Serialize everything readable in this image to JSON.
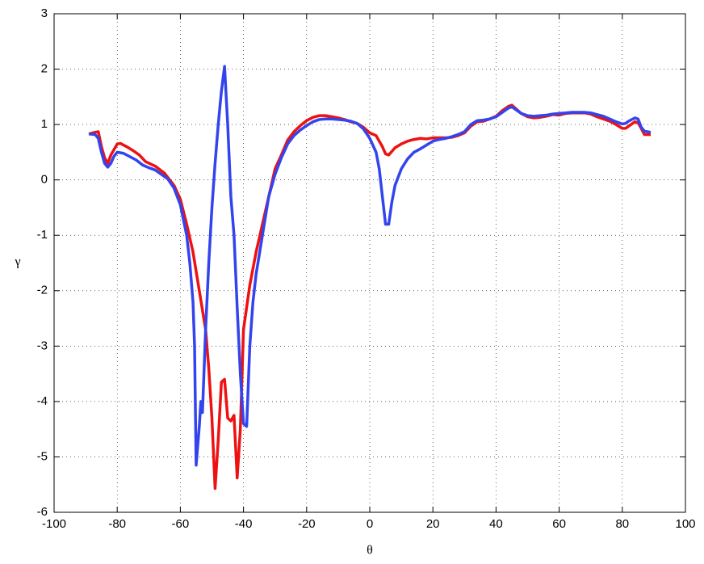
{
  "chart_data": {
    "type": "line",
    "x_label": "θ",
    "y_label": "γ",
    "xlim": [
      -100,
      100
    ],
    "xticks": [
      -100,
      -80,
      -60,
      -40,
      -20,
      0,
      20,
      40,
      60,
      80,
      100
    ],
    "ylim": [
      -6,
      3
    ],
    "yticks": [
      -6,
      -5,
      -4,
      -3,
      -2,
      -1,
      0,
      1,
      2,
      3
    ],
    "grid": true,
    "series": [
      {
        "color": "#ee1111",
        "x": [
          -89,
          -87,
          -86,
          -85,
          -84,
          -83,
          -82,
          -80,
          -79,
          -77,
          -75,
          -73,
          -71,
          -68,
          -65,
          -62,
          -60,
          -58,
          -56,
          -54,
          -52,
          -51,
          -50,
          -49,
          -48,
          -47,
          -46,
          -45,
          -44,
          -43,
          -42,
          -41,
          -40,
          -38,
          -36,
          -34,
          -32,
          -30,
          -28,
          -26,
          -24,
          -22,
          -20,
          -18,
          -16,
          -14,
          -12,
          -10,
          -8,
          -6,
          -4,
          -2,
          0,
          2,
          4,
          5,
          6,
          8,
          10,
          12,
          14,
          16,
          18,
          20,
          22,
          24,
          26,
          28,
          30,
          32,
          34,
          36,
          38,
          40,
          42,
          44,
          45,
          46,
          48,
          50,
          52,
          54,
          56,
          58,
          60,
          62,
          64,
          66,
          68,
          70,
          72,
          74,
          76,
          78,
          80,
          81,
          82,
          84,
          85,
          86,
          87,
          89
        ],
        "values": [
          0.83,
          0.86,
          0.87,
          0.6,
          0.4,
          0.3,
          0.45,
          0.65,
          0.66,
          0.6,
          0.53,
          0.45,
          0.33,
          0.25,
          0.12,
          -0.1,
          -0.35,
          -0.8,
          -1.3,
          -2.0,
          -2.7,
          -3.4,
          -4.3,
          -5.57,
          -4.7,
          -3.65,
          -3.6,
          -4.3,
          -4.35,
          -4.25,
          -5.38,
          -4.5,
          -2.7,
          -1.9,
          -1.3,
          -0.8,
          -0.3,
          0.2,
          0.45,
          0.72,
          0.87,
          0.98,
          1.07,
          1.13,
          1.16,
          1.16,
          1.14,
          1.12,
          1.09,
          1.05,
          1.02,
          0.95,
          0.85,
          0.8,
          0.6,
          0.47,
          0.45,
          0.58,
          0.65,
          0.7,
          0.73,
          0.75,
          0.74,
          0.76,
          0.76,
          0.76,
          0.77,
          0.8,
          0.85,
          0.97,
          1.05,
          1.06,
          1.1,
          1.15,
          1.25,
          1.33,
          1.35,
          1.3,
          1.2,
          1.14,
          1.12,
          1.13,
          1.15,
          1.18,
          1.17,
          1.2,
          1.21,
          1.21,
          1.21,
          1.19,
          1.14,
          1.1,
          1.06,
          1.0,
          0.93,
          0.93,
          0.97,
          1.05,
          1.03,
          0.93,
          0.82,
          0.82
        ]
      },
      {
        "color": "#3344ee",
        "x": [
          -89,
          -87,
          -86,
          -85,
          -84,
          -83,
          -82,
          -81,
          -80,
          -78,
          -76,
          -74,
          -72,
          -70,
          -68,
          -66,
          -64,
          -62,
          -60,
          -58,
          -57,
          -56,
          -55.5,
          -55,
          -54,
          -53.5,
          -53,
          -52,
          -51,
          -50,
          -49,
          -48,
          -47,
          -46,
          -45,
          -44,
          -43,
          -42,
          -41,
          -40,
          -39,
          -38,
          -37,
          -36,
          -34,
          -32,
          -30,
          -28,
          -26,
          -24,
          -22,
          -20,
          -18,
          -16,
          -14,
          -12,
          -10,
          -8,
          -6,
          -4,
          -2,
          0,
          2,
          3,
          4,
          5,
          6,
          7,
          8,
          10,
          12,
          14,
          16,
          18,
          20,
          22,
          24,
          26,
          28,
          30,
          32,
          34,
          36,
          38,
          40,
          42,
          44,
          45,
          46,
          48,
          50,
          52,
          54,
          56,
          58,
          60,
          62,
          64,
          66,
          68,
          70,
          72,
          74,
          76,
          78,
          80,
          81,
          82,
          84,
          85,
          86,
          87,
          89
        ],
        "values": [
          0.83,
          0.82,
          0.75,
          0.5,
          0.3,
          0.23,
          0.3,
          0.43,
          0.5,
          0.48,
          0.42,
          0.36,
          0.27,
          0.22,
          0.18,
          0.1,
          0.02,
          -0.15,
          -0.45,
          -1.0,
          -1.5,
          -2.2,
          -3.0,
          -5.15,
          -4.45,
          -4.0,
          -4.2,
          -2.7,
          -1.5,
          -0.5,
          0.3,
          1.0,
          1.6,
          2.05,
          1.0,
          -0.3,
          -1.0,
          -2.3,
          -3.5,
          -4.4,
          -4.45,
          -3.0,
          -2.2,
          -1.7,
          -1.0,
          -0.3,
          0.1,
          0.4,
          0.65,
          0.8,
          0.9,
          0.98,
          1.05,
          1.09,
          1.1,
          1.1,
          1.09,
          1.08,
          1.06,
          1.02,
          0.92,
          0.75,
          0.5,
          0.2,
          -0.3,
          -0.8,
          -0.8,
          -0.4,
          -0.1,
          0.2,
          0.38,
          0.5,
          0.56,
          0.63,
          0.7,
          0.73,
          0.75,
          0.78,
          0.82,
          0.87,
          1.0,
          1.07,
          1.08,
          1.1,
          1.14,
          1.22,
          1.3,
          1.32,
          1.28,
          1.2,
          1.16,
          1.15,
          1.16,
          1.17,
          1.19,
          1.2,
          1.21,
          1.22,
          1.22,
          1.22,
          1.21,
          1.18,
          1.15,
          1.1,
          1.05,
          1.01,
          1.02,
          1.06,
          1.12,
          1.1,
          0.95,
          0.88,
          0.86
        ]
      }
    ]
  }
}
